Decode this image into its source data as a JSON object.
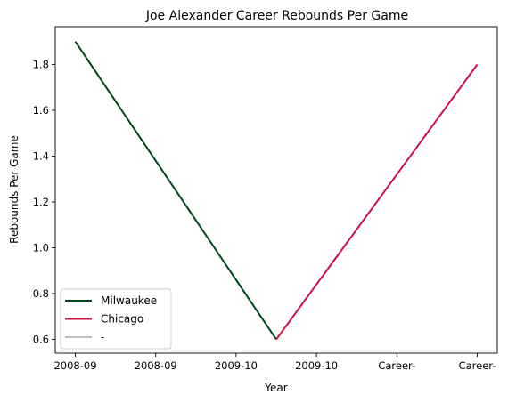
{
  "chart_data": {
    "type": "line",
    "title": "Joe Alexander Career Rebounds Per Game",
    "xlabel": "Year",
    "ylabel": "Rebounds Per Game",
    "categories": [
      "2008-09",
      "2008-09",
      "2009-10",
      "2009-10",
      "Career-",
      "Career-"
    ],
    "ylim": [
      0.54,
      1.965
    ],
    "yticks": [
      0.6,
      0.8,
      1.0,
      1.2,
      1.4,
      1.6,
      1.8
    ],
    "ytick_labels": [
      "0.6",
      "0.8",
      "1.0",
      "1.2",
      "1.4",
      "1.6",
      "1.8"
    ],
    "grid": false,
    "legend_position": "lower-left",
    "series": [
      {
        "name": "Milwaukee",
        "color": "#00471b",
        "x": [
          0,
          2.5
        ],
        "y": [
          1.9,
          0.6
        ]
      },
      {
        "name": "Chicago",
        "color": "#ce1141",
        "x": [
          2.5,
          5
        ],
        "y": [
          0.6,
          1.8
        ]
      },
      {
        "name": "-",
        "color": "#c0c0c0",
        "x": [],
        "y": []
      }
    ]
  }
}
